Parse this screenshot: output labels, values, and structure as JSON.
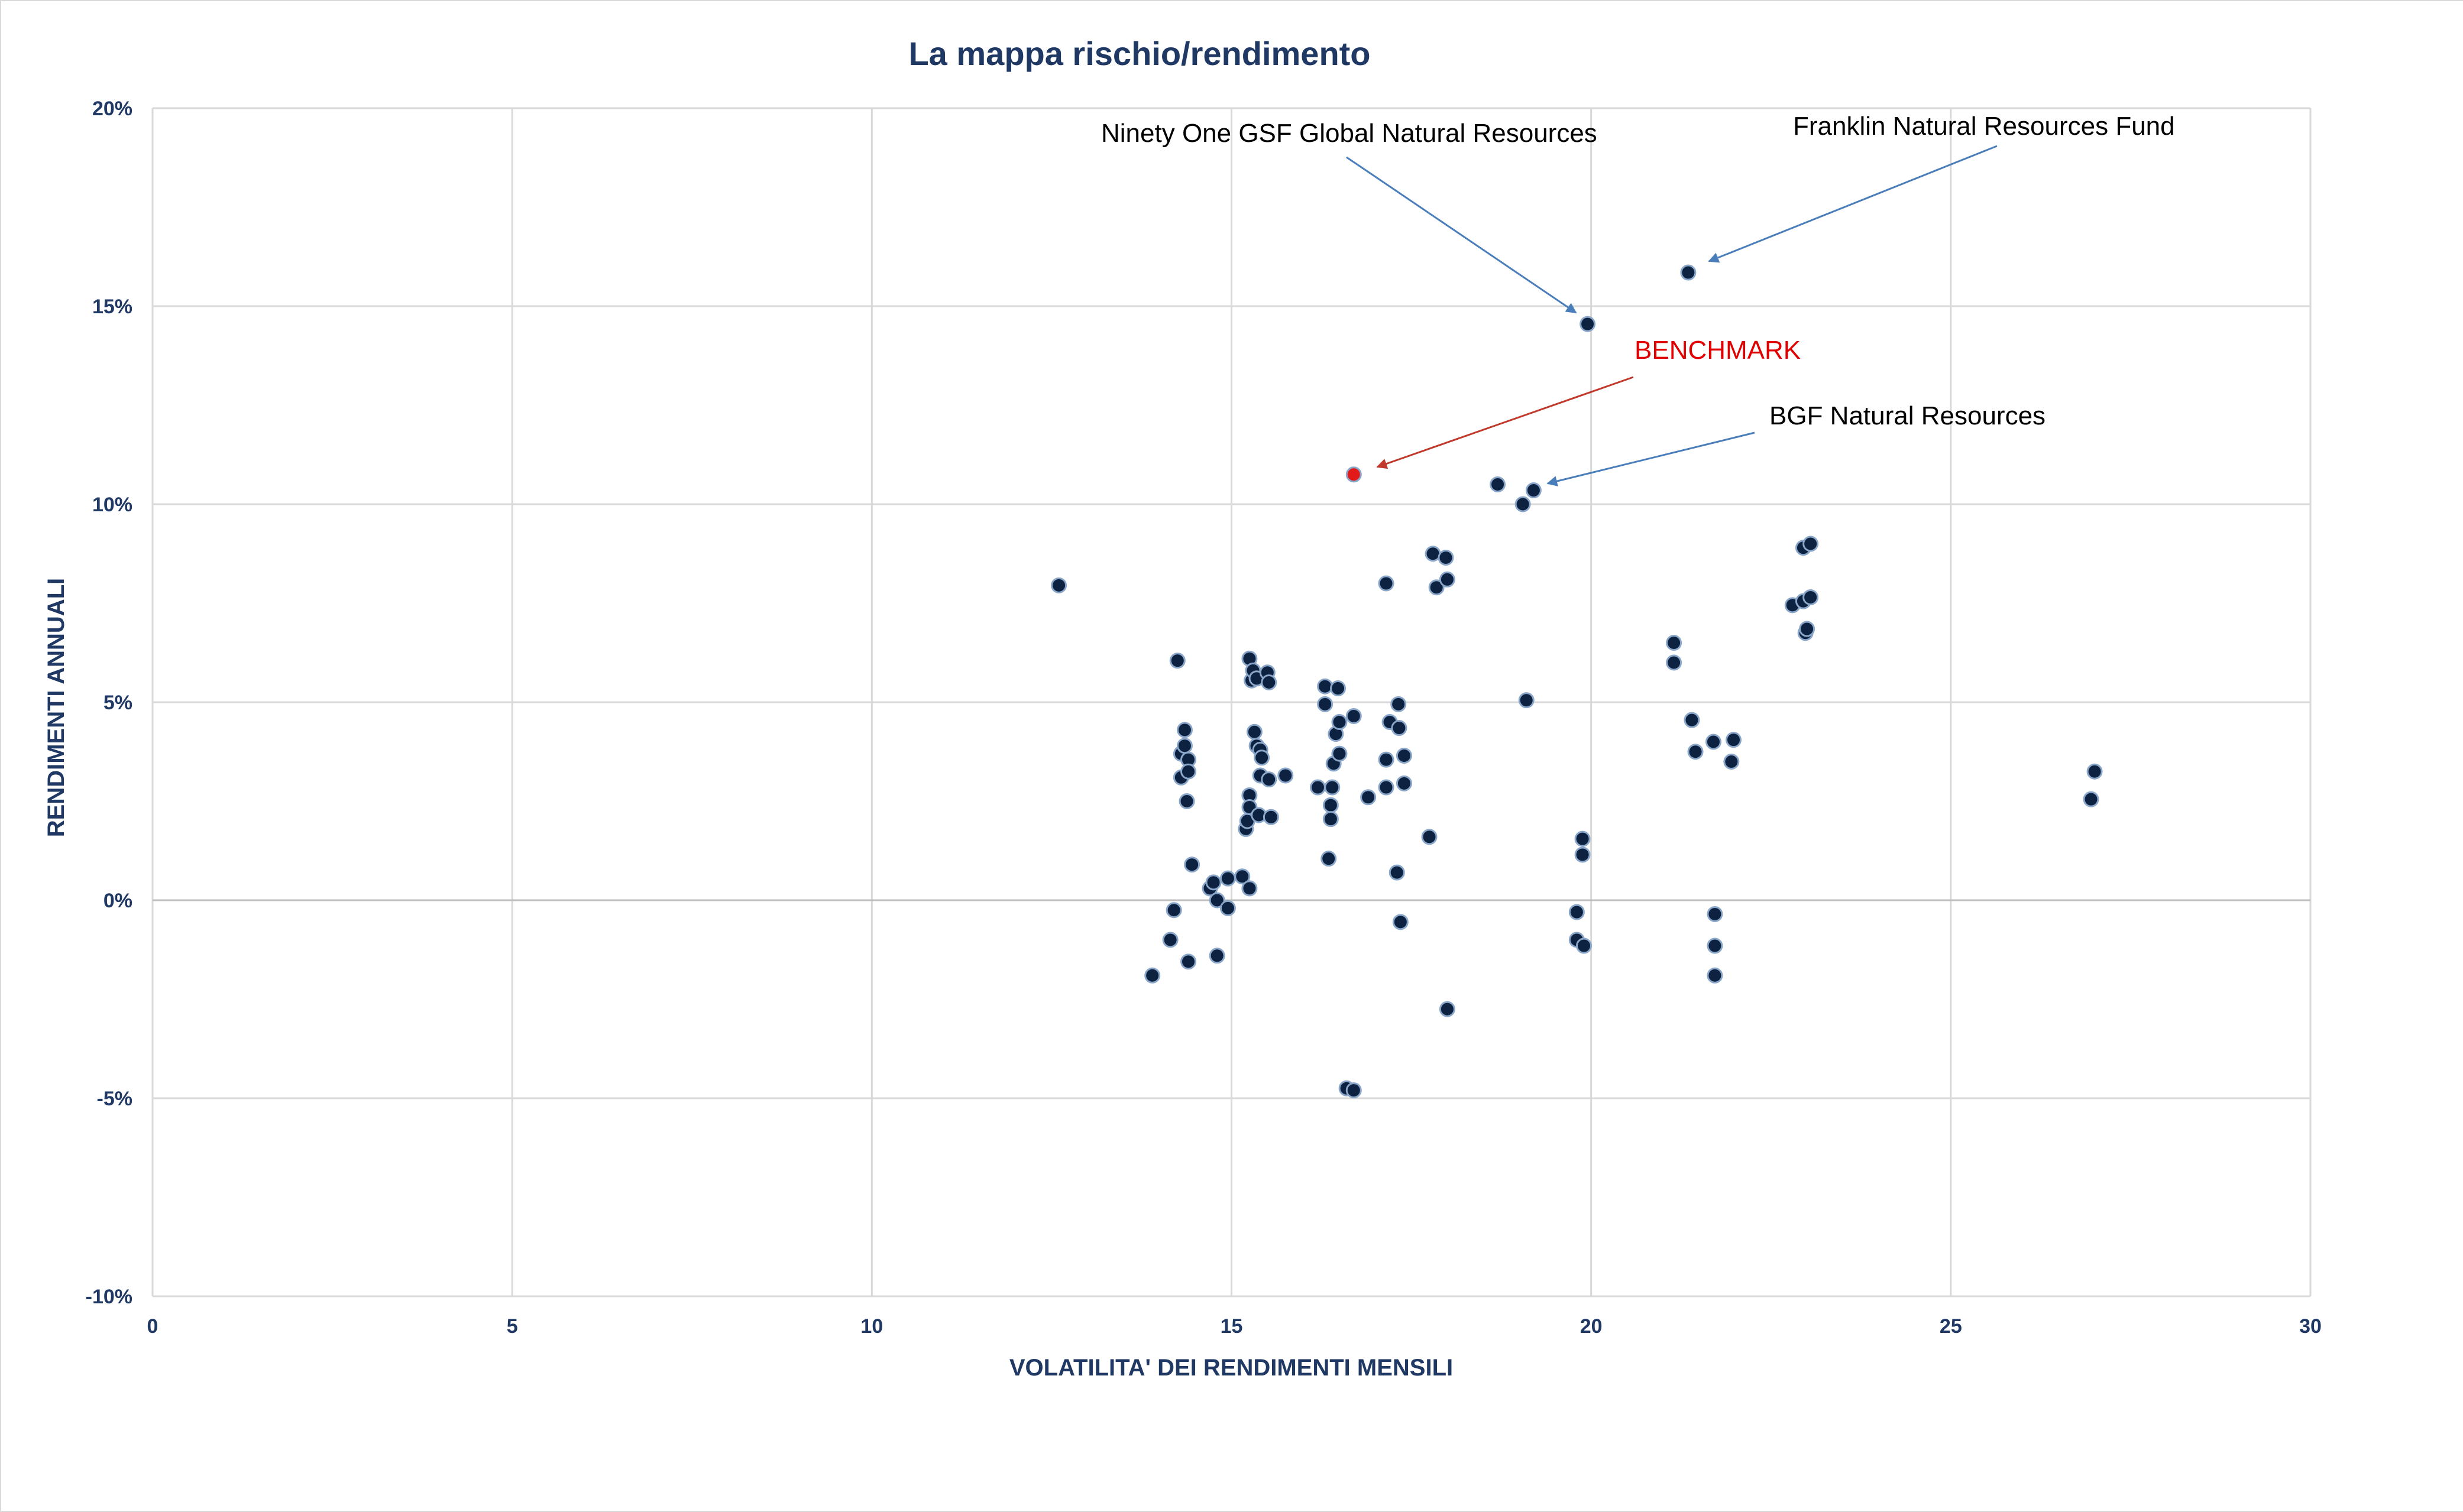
{
  "chart_data": {
    "type": "scatter",
    "title": "La mappa rischio/rendimento",
    "xlabel": "VOLATILITA' DEI RENDIMENTI MENSILI",
    "ylabel": "RENDIMENTI ANNUALI",
    "xlim": [
      0,
      30
    ],
    "ylim": [
      -10,
      20
    ],
    "x_ticks": [
      0,
      5,
      10,
      15,
      20,
      25,
      30
    ],
    "x_tick_labels": [
      "0",
      "5",
      "10",
      "15",
      "20",
      "25",
      "30"
    ],
    "y_ticks": [
      -10,
      -5,
      0,
      5,
      10,
      15,
      20
    ],
    "y_tick_labels": [
      "-10%",
      "-5%",
      "0%",
      "5%",
      "10%",
      "15%",
      "20%"
    ],
    "grid": true,
    "colors": {
      "points": "#0d2140",
      "point_stroke": "#8aa6c8",
      "benchmark": "#e21a1a",
      "arrow_blue": "#4a7ebb",
      "arrow_red": "#c0392b"
    },
    "series": [
      {
        "points": [
          [
            12.6,
            7.95
          ],
          [
            13.9,
            -1.9
          ],
          [
            14.15,
            -1.0
          ],
          [
            14.2,
            -0.25
          ],
          [
            14.25,
            6.05
          ],
          [
            14.3,
            3.1
          ],
          [
            14.3,
            3.7
          ],
          [
            14.35,
            3.9
          ],
          [
            14.35,
            4.3
          ],
          [
            14.4,
            3.55
          ],
          [
            14.4,
            3.25
          ],
          [
            14.38,
            2.5
          ],
          [
            14.4,
            -1.55
          ],
          [
            14.45,
            0.9
          ],
          [
            14.7,
            0.3
          ],
          [
            14.75,
            0.45
          ],
          [
            14.8,
            0.0
          ],
          [
            14.8,
            -1.4
          ],
          [
            14.95,
            0.55
          ],
          [
            14.95,
            -0.2
          ],
          [
            15.15,
            0.6
          ],
          [
            15.2,
            1.8
          ],
          [
            15.22,
            2.0
          ],
          [
            15.25,
            2.65
          ],
          [
            15.25,
            2.35
          ],
          [
            15.25,
            0.3
          ],
          [
            15.25,
            6.1
          ],
          [
            15.28,
            5.55
          ],
          [
            15.3,
            5.8
          ],
          [
            15.35,
            5.6
          ],
          [
            15.32,
            4.25
          ],
          [
            15.35,
            3.9
          ],
          [
            15.38,
            2.15
          ],
          [
            15.4,
            3.8
          ],
          [
            15.42,
            3.6
          ],
          [
            15.4,
            3.15
          ],
          [
            15.5,
            5.75
          ],
          [
            15.52,
            5.5
          ],
          [
            15.52,
            3.05
          ],
          [
            15.55,
            2.1
          ],
          [
            15.75,
            3.15
          ],
          [
            16.2,
            2.85
          ],
          [
            16.3,
            5.4
          ],
          [
            16.3,
            4.95
          ],
          [
            16.35,
            1.05
          ],
          [
            16.38,
            2.4
          ],
          [
            16.38,
            2.05
          ],
          [
            16.4,
            2.85
          ],
          [
            16.42,
            3.45
          ],
          [
            16.45,
            4.2
          ],
          [
            16.48,
            5.35
          ],
          [
            16.5,
            4.5
          ],
          [
            16.5,
            3.7
          ],
          [
            16.6,
            -4.75
          ],
          [
            16.7,
            -4.8
          ],
          [
            16.7,
            4.65
          ],
          [
            16.9,
            2.6
          ],
          [
            17.15,
            8.0
          ],
          [
            17.15,
            3.55
          ],
          [
            17.15,
            2.85
          ],
          [
            17.2,
            4.5
          ],
          [
            17.3,
            0.7
          ],
          [
            17.32,
            4.95
          ],
          [
            17.33,
            4.35
          ],
          [
            17.35,
            -0.55
          ],
          [
            17.4,
            2.95
          ],
          [
            17.4,
            3.65
          ],
          [
            17.75,
            1.6
          ],
          [
            17.8,
            8.75
          ],
          [
            17.85,
            7.9
          ],
          [
            17.98,
            8.65
          ],
          [
            18.0,
            8.1
          ],
          [
            18.0,
            -2.75
          ],
          [
            18.7,
            10.5
          ],
          [
            19.05,
            10.0
          ],
          [
            19.1,
            5.05
          ],
          [
            19.2,
            10.35
          ],
          [
            19.8,
            -0.3
          ],
          [
            19.8,
            -1.0
          ],
          [
            19.88,
            1.55
          ],
          [
            19.88,
            1.15
          ],
          [
            19.9,
            -1.15
          ],
          [
            21.15,
            6.5
          ],
          [
            21.15,
            6.0
          ],
          [
            21.4,
            4.55
          ],
          [
            21.45,
            3.75
          ],
          [
            21.7,
            4.0
          ],
          [
            21.72,
            -0.35
          ],
          [
            21.72,
            -1.15
          ],
          [
            21.72,
            -1.9
          ],
          [
            21.95,
            3.5
          ],
          [
            21.98,
            4.05
          ],
          [
            22.8,
            7.45
          ],
          [
            22.95,
            8.9
          ],
          [
            22.95,
            7.55
          ],
          [
            22.98,
            6.75
          ],
          [
            23.0,
            6.85
          ],
          [
            23.05,
            9.0
          ],
          [
            23.05,
            7.65
          ],
          [
            26.95,
            2.55
          ],
          [
            27.0,
            3.25
          ]
        ]
      },
      {
        "name": "BENCHMARK",
        "points": [
          [
            16.7,
            10.75
          ]
        ]
      },
      {
        "points": [
          [
            19.95,
            14.55
          ]
        ]
      },
      {
        "points": [
          [
            21.35,
            15.85
          ]
        ]
      }
    ],
    "annotations": [
      {
        "text": "Ninety One GSF Global Natural Resources",
        "target": [
          19.95,
          14.55
        ],
        "arrow_color": "blue"
      },
      {
        "text": "Franklin Natural Resources Fund",
        "target": [
          21.35,
          15.85
        ],
        "arrow_color": "blue"
      },
      {
        "text": "BENCHMARK",
        "target": [
          16.7,
          10.75
        ],
        "arrow_color": "red"
      },
      {
        "text": "BGF Natural Resources",
        "target": [
          19.2,
          10.35
        ],
        "arrow_color": "blue"
      }
    ]
  }
}
